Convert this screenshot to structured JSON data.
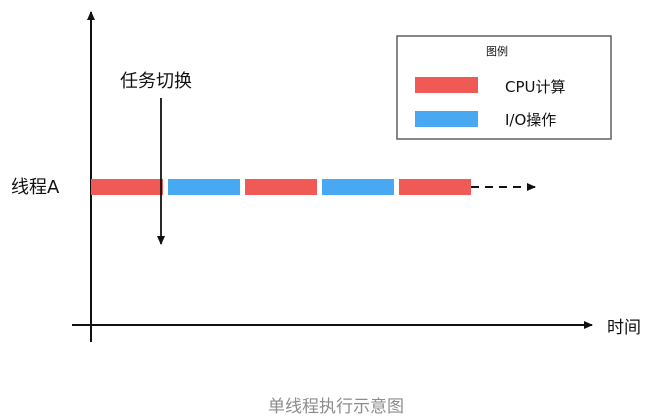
{
  "diagram": {
    "thread_label": "线程A",
    "switch_label": "任务切换",
    "time_label": "时间",
    "legend": {
      "title": "图例",
      "items": [
        {
          "label": "CPU计算",
          "color": "#ef5956"
        },
        {
          "label": "I/O操作",
          "color": "#49a8f2"
        }
      ]
    },
    "segments": [
      "CPU计算",
      "I/O操作",
      "CPU计算",
      "I/O操作",
      "CPU计算"
    ]
  },
  "caption": "单线程执行示意图"
}
